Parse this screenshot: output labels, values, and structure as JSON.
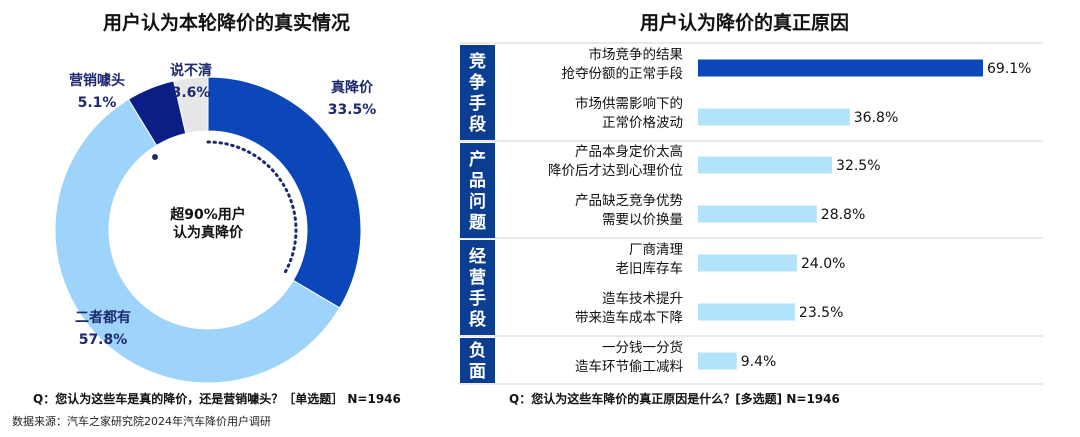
{
  "left_title": "用户认为本轮降价的真实情况",
  "right_title": "用户认为降价的真正原因",
  "left_question": "Q：您认为这些车是真的降价，还是营销噱头？［单选题］ N=1946",
  "right_question": "Q：您认为这些车降价的真正原因是什么？[多选题] N=1946",
  "source": "数据来源：汽车之家研究院2024年汽车降价用户调研",
  "chart_data": [
    {
      "type": "pie",
      "title": "用户认为本轮降价的真实情况",
      "center_text": [
        "超90%用户",
        "认为真降价"
      ],
      "slices": [
        {
          "name": "真降价",
          "value": 33.5,
          "label": "33.5%",
          "color": "#0b47b8"
        },
        {
          "name": "二者都有",
          "value": 57.8,
          "label": "57.8%",
          "color": "#9ed3fb"
        },
        {
          "name": "营销噱头",
          "value": 5.1,
          "label": "5.1%",
          "color": "#0a1f86"
        },
        {
          "name": "说不清",
          "value": 3.6,
          "label": "3.6%",
          "color": "#e6e6e6"
        }
      ]
    },
    {
      "type": "bar",
      "orientation": "horizontal",
      "title": "用户认为降价的真正原因",
      "xlim": [
        0,
        75
      ],
      "groups": [
        {
          "name": "竞争手段",
          "items": [
            0,
            1
          ]
        },
        {
          "name": "产品问题",
          "items": [
            2,
            3
          ]
        },
        {
          "name": "经营手段",
          "items": [
            4,
            5
          ]
        },
        {
          "name": "负面",
          "items": [
            6
          ]
        }
      ],
      "categories": [
        [
          "市场竞争的结果",
          "抢夺份额的正常手段"
        ],
        [
          "市场供需影响下的",
          "正常价格波动"
        ],
        [
          "产品本身定价太高",
          "降价后才达到心理价位"
        ],
        [
          "产品缺乏竞争优势",
          "需要以价换量"
        ],
        [
          "厂商清理",
          "老旧库存车"
        ],
        [
          "造车技术提升",
          "带来造车成本下降"
        ],
        [
          "一分钱一分货",
          "造车环节偷工减料"
        ]
      ],
      "values": [
        69.1,
        36.8,
        32.5,
        28.8,
        24.0,
        23.5,
        9.4
      ],
      "value_labels": [
        "69.1%",
        "36.8%",
        "32.5%",
        "28.8%",
        "24.0%",
        "23.5%",
        "9.4%"
      ],
      "highlight_color": "#0b47b8",
      "bar_color": "#b3e2fb",
      "group_color": "#0b3d91"
    }
  ]
}
